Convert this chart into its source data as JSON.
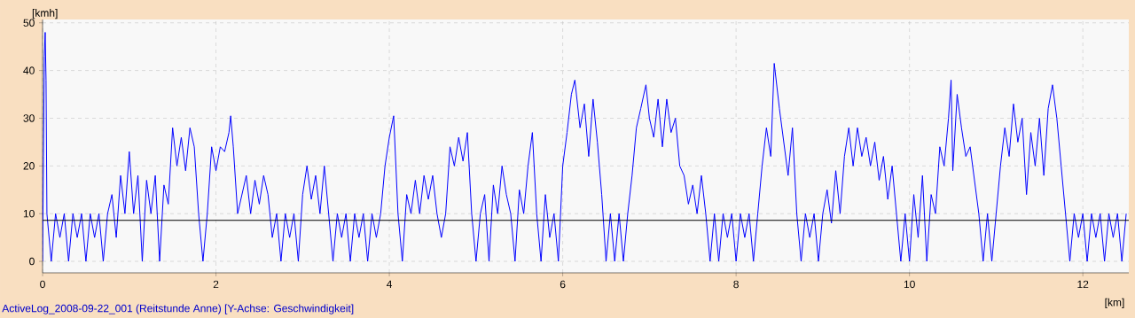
{
  "chart_data": {
    "type": "line",
    "xlabel": "[km]",
    "ylabel": "[kmh]",
    "annotations": [
      "ActiveLog_2008-09-22_001 (Reitstunde Anne) [Y-Achse: Geschwindigkeit]"
    ],
    "xlim": [
      0,
      12.53
    ],
    "ylim": [
      -2.4,
      50.7
    ],
    "xticks": [
      0,
      2,
      4,
      6,
      8,
      10,
      12
    ],
    "yticks": [
      0,
      10,
      20,
      30,
      40,
      50
    ],
    "grid": true,
    "marker": "none",
    "line_style": "solid",
    "ref_lines": [
      {
        "axis": "y",
        "value": 8.6,
        "color": "#000000"
      }
    ],
    "series": [
      {
        "color": "#0000ff",
        "x": [
          0,
          0.01,
          0.02,
          0.03,
          0.04,
          0.05,
          0.1,
          0.15,
          0.2,
          0.25,
          0.3,
          0.35,
          0.4,
          0.45,
          0.5,
          0.55,
          0.6,
          0.65,
          0.7,
          0.75,
          0.8,
          0.85,
          0.9,
          0.95,
          1.0,
          1.05,
          1.1,
          1.15,
          1.2,
          1.25,
          1.3,
          1.35,
          1.4,
          1.45,
          1.5,
          1.55,
          1.6,
          1.65,
          1.7,
          1.75,
          1.8,
          1.85,
          1.9,
          1.95,
          2.0,
          2.05,
          2.1,
          2.15,
          2.17,
          2.2,
          2.25,
          2.3,
          2.35,
          2.4,
          2.45,
          2.5,
          2.55,
          2.6,
          2.65,
          2.7,
          2.75,
          2.8,
          2.85,
          2.9,
          2.95,
          3.0,
          3.05,
          3.1,
          3.15,
          3.2,
          3.25,
          3.3,
          3.35,
          3.4,
          3.45,
          3.5,
          3.55,
          3.6,
          3.65,
          3.7,
          3.75,
          3.8,
          3.85,
          3.9,
          3.95,
          4.0,
          4.05,
          4.1,
          4.15,
          4.2,
          4.25,
          4.3,
          4.35,
          4.4,
          4.45,
          4.5,
          4.55,
          4.6,
          4.65,
          4.7,
          4.75,
          4.8,
          4.85,
          4.9,
          4.95,
          5.0,
          5.05,
          5.1,
          5.15,
          5.2,
          5.25,
          5.3,
          5.35,
          5.4,
          5.45,
          5.5,
          5.55,
          5.6,
          5.65,
          5.7,
          5.75,
          5.8,
          5.85,
          5.9,
          5.95,
          6.0,
          6.05,
          6.1,
          6.14,
          6.2,
          6.25,
          6.3,
          6.35,
          6.4,
          6.45,
          6.5,
          6.55,
          6.6,
          6.65,
          6.7,
          6.75,
          6.8,
          6.85,
          6.9,
          6.96,
          7.0,
          7.05,
          7.1,
          7.15,
          7.2,
          7.25,
          7.3,
          7.35,
          7.4,
          7.45,
          7.5,
          7.55,
          7.6,
          7.65,
          7.7,
          7.75,
          7.8,
          7.85,
          7.9,
          7.95,
          8.0,
          8.05,
          8.1,
          8.15,
          8.2,
          8.25,
          8.3,
          8.35,
          8.4,
          8.44,
          8.5,
          8.55,
          8.6,
          8.65,
          8.7,
          8.75,
          8.8,
          8.85,
          8.9,
          8.95,
          9.0,
          9.05,
          9.1,
          9.15,
          9.2,
          9.25,
          9.3,
          9.35,
          9.4,
          9.45,
          9.5,
          9.55,
          9.6,
          9.65,
          9.7,
          9.75,
          9.8,
          9.85,
          9.9,
          9.95,
          10.0,
          10.05,
          10.1,
          10.15,
          10.2,
          10.25,
          10.3,
          10.35,
          10.4,
          10.45,
          10.48,
          10.5,
          10.55,
          10.6,
          10.65,
          10.7,
          10.75,
          10.8,
          10.85,
          10.9,
          10.95,
          11.0,
          11.05,
          11.1,
          11.15,
          11.2,
          11.25,
          11.3,
          11.35,
          11.4,
          11.45,
          11.5,
          11.55,
          11.6,
          11.65,
          11.7,
          11.75,
          11.8,
          11.85,
          11.9,
          11.95,
          12.0,
          12.05,
          12.1,
          12.15,
          12.2,
          12.25,
          12.3,
          12.35,
          12.4,
          12.45,
          12.5
        ],
        "values": [
          0,
          22,
          43,
          48,
          38,
          10,
          0,
          10,
          5,
          10,
          0,
          10,
          5,
          10,
          0,
          10,
          5,
          10,
          0,
          10,
          14,
          5,
          18,
          10,
          23,
          10,
          18,
          0,
          17,
          10,
          18,
          0,
          16,
          12,
          28,
          20,
          26,
          19,
          28,
          24,
          10,
          0,
          10,
          24,
          19,
          24,
          23,
          27,
          30.5,
          24,
          10,
          14,
          18,
          10,
          17,
          12,
          18,
          14,
          5,
          10,
          0,
          10,
          5,
          10,
          0,
          14,
          20,
          13,
          18,
          10,
          20,
          10,
          0,
          10,
          5,
          10,
          0,
          10,
          5,
          10,
          0,
          10,
          5,
          10,
          20,
          26,
          30.5,
          10,
          0,
          14,
          10,
          17,
          10,
          18,
          13,
          18,
          10,
          5,
          10,
          24,
          20,
          26,
          21,
          27,
          10,
          0,
          10,
          14,
          0,
          16,
          10,
          20,
          14,
          10,
          0,
          15,
          10,
          20,
          27,
          10,
          0,
          14,
          5,
          10,
          0,
          20,
          27,
          35,
          38,
          28,
          33,
          22,
          34,
          25,
          14,
          0,
          10,
          0,
          10,
          0,
          10,
          18,
          28,
          32,
          37,
          30,
          26,
          34,
          24,
          34,
          27,
          30,
          20,
          18,
          12,
          16,
          10,
          18,
          10,
          0,
          10,
          0,
          10,
          5,
          10,
          0,
          10,
          5,
          10,
          0,
          10,
          20,
          28,
          22,
          41.5,
          32,
          25,
          18,
          28,
          10,
          0,
          10,
          5,
          10,
          0,
          10,
          15,
          8,
          19,
          10,
          22,
          28,
          20,
          28,
          22,
          26,
          20,
          25,
          17,
          22,
          13,
          20,
          10,
          0,
          10,
          0,
          14,
          5,
          18,
          0,
          14,
          10,
          24,
          20,
          30,
          38,
          19,
          35,
          28,
          22,
          24,
          17,
          10,
          0,
          10,
          0,
          10,
          20,
          28,
          22,
          33,
          25,
          30,
          14,
          27,
          20,
          30,
          18,
          32,
          37,
          30,
          20,
          10,
          0,
          10,
          5,
          10,
          0,
          10,
          5,
          10,
          0,
          10,
          5,
          10,
          0,
          10
        ]
      }
    ]
  }
}
